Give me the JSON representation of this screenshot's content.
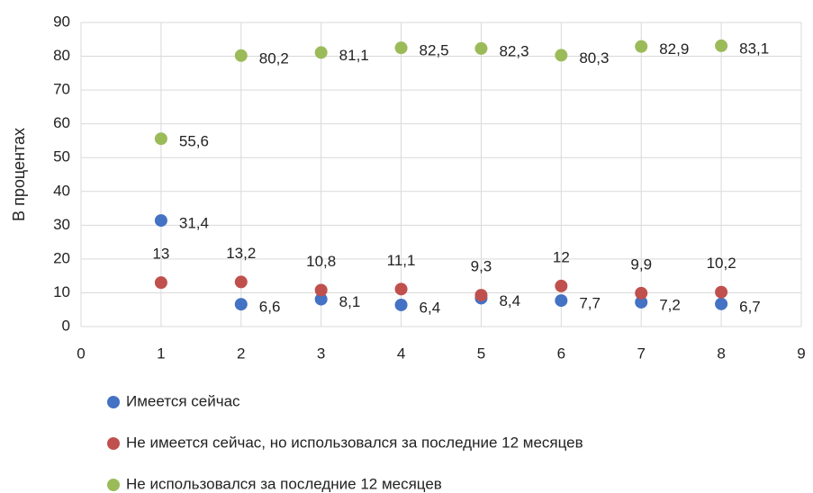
{
  "chart_data": {
    "type": "scatter",
    "ylabel": "В процентах",
    "xlim": [
      0,
      9
    ],
    "xticks": [
      0,
      1,
      2,
      3,
      4,
      5,
      6,
      7,
      8,
      9
    ],
    "ylim": [
      0,
      90
    ],
    "yticks": [
      0,
      10,
      20,
      30,
      40,
      50,
      60,
      70,
      80,
      90
    ],
    "grid": true,
    "legend": "bottom",
    "series": [
      {
        "name": "Имеется сейчас",
        "color": "#4472c4",
        "label_position": "right",
        "x": [
          1,
          2,
          3,
          4,
          5,
          6,
          7,
          8
        ],
        "values": [
          31.4,
          6.6,
          8.1,
          6.4,
          8.4,
          7.7,
          7.2,
          6.7
        ],
        "value_labels": [
          "31,4",
          "6,6",
          "8,1",
          "6,4",
          "8,4",
          "7,7",
          "7,2",
          "6,7"
        ]
      },
      {
        "name": "Не имеется сейчас, но использовался за последние 12 месяцев",
        "color": "#c0504d",
        "label_position": "top",
        "x": [
          1,
          2,
          3,
          4,
          5,
          6,
          7,
          8
        ],
        "values": [
          13,
          13.2,
          10.8,
          11.1,
          9.3,
          12,
          9.9,
          10.2
        ],
        "value_labels": [
          "13",
          "13,2",
          "10,8",
          "11,1",
          "9,3",
          "12",
          "9,9",
          "10,2"
        ]
      },
      {
        "name": "Не использовался за последние 12 месяцев",
        "color": "#9bbb59",
        "label_position": "right",
        "x": [
          1,
          2,
          3,
          4,
          5,
          6,
          7,
          8
        ],
        "values": [
          55.6,
          80.2,
          81.1,
          82.5,
          82.3,
          80.3,
          82.9,
          83.1
        ],
        "value_labels": [
          "55,6",
          "80,2",
          "81,1",
          "82,5",
          "82,3",
          "80,3",
          "82,9",
          "83,1"
        ]
      }
    ]
  }
}
